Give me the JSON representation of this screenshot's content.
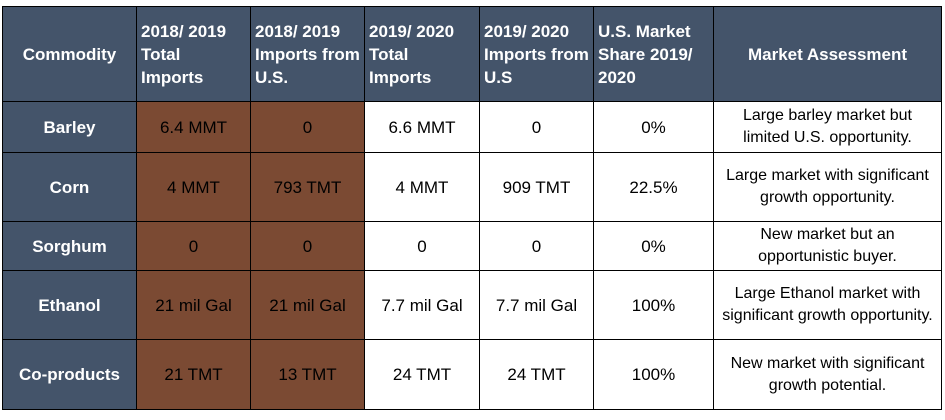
{
  "table": {
    "headers": {
      "commodity": "Commodity",
      "total_2018": "2018/ 2019 Total Imports",
      "us_2018": "2018/ 2019 Imports from U.S.",
      "total_2019": "2019/ 2020 Total Imports",
      "us_2019": "2019/ 2020 Imports from U.S",
      "share": "U.S. Market Share 2019/ 2020",
      "assessment": "Market Assessment"
    },
    "rows": [
      {
        "commodity": "Barley",
        "total_2018": "6.4 MMT",
        "us_2018": "0",
        "total_2019": "6.6 MMT",
        "us_2019": "0",
        "share": "0%",
        "assessment": "Large barley market but limited U.S. opportunity."
      },
      {
        "commodity": "Corn",
        "total_2018": "4 MMT",
        "us_2018": "793 TMT",
        "total_2019": "4 MMT",
        "us_2019": "909 TMT",
        "share": "22.5%",
        "assessment": "Large market with significant growth opportunity."
      },
      {
        "commodity": "Sorghum",
        "total_2018": "0",
        "us_2018": "0",
        "total_2019": "0",
        "us_2019": "0",
        "share": "0%",
        "assessment": "New market but an opportunistic buyer."
      },
      {
        "commodity": "Ethanol",
        "total_2018": "21 mil Gal",
        "us_2018": "21 mil Gal",
        "total_2019": "7.7 mil Gal",
        "us_2019": "7.7 mil Gal",
        "share": "100%",
        "assessment": "Large Ethanol market with significant growth opportunity."
      },
      {
        "commodity": "Co-products",
        "total_2018": "21 TMT",
        "us_2018": "13 TMT",
        "total_2019": "24 TMT",
        "us_2019": "24 TMT",
        "share": "100%",
        "assessment": "New market with significant growth potential."
      }
    ]
  },
  "colors": {
    "header_bg": "#44546a",
    "prior_year_bg": "#7b4a33",
    "border": "#000000"
  }
}
